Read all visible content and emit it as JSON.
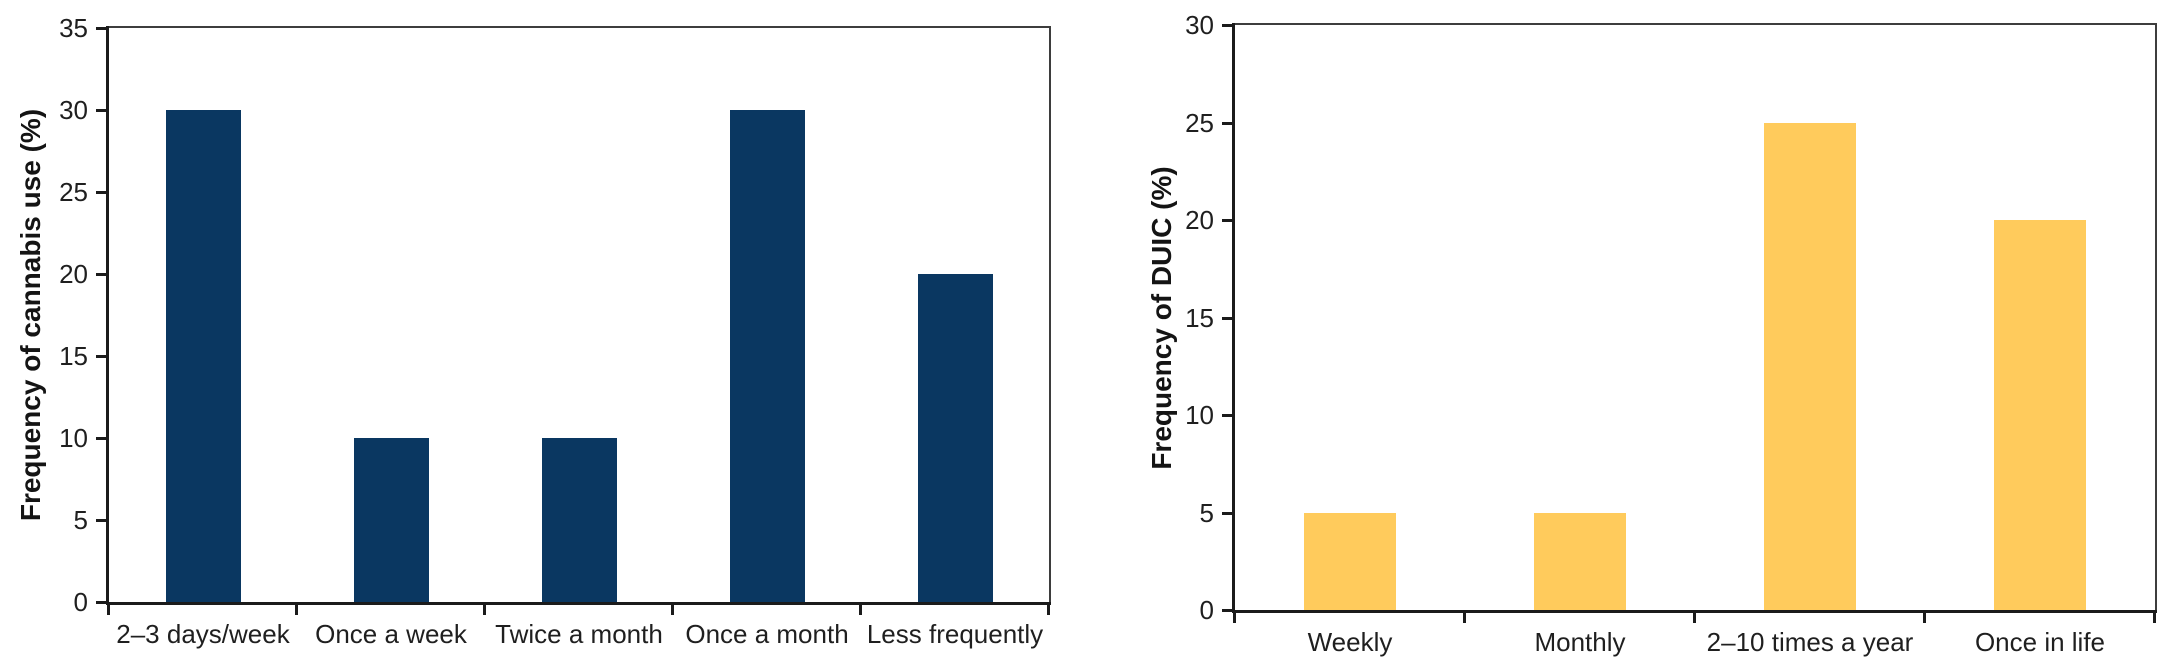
{
  "figure": {
    "background": "#ffffff",
    "description_left_panel": "Frequency of cannabis use (%)",
    "description_right_panel": "Frequency of DUIC (%)"
  },
  "colors": {
    "navy_bar": "#0a3761",
    "yellow_bar": "#ffcb5c",
    "axis": "#1b1b1b",
    "frame": "#3d3d3d",
    "text": "#1f1f1f"
  },
  "chart_data": [
    {
      "type": "bar",
      "title": "",
      "categories": [
        "2–3 days/week",
        "Once a week",
        "Twice a month",
        "Once a month",
        "Less frequently"
      ],
      "values": [
        30,
        10,
        10,
        30,
        20
      ],
      "xlabel": "",
      "ylabel": "Frequency of cannabis use (%)",
      "ylim": [
        0,
        35
      ],
      "yticks": [
        0,
        5,
        10,
        15,
        20,
        25,
        30,
        35
      ],
      "bar_color": "#0a3761",
      "grid": false,
      "legend": "none",
      "plot_frame": "boxed"
    },
    {
      "type": "bar",
      "title": "",
      "categories": [
        "Weekly",
        "Monthly",
        "2–10 times a year",
        "Once in life"
      ],
      "values": [
        5,
        5,
        25,
        20
      ],
      "xlabel": "",
      "ylabel": "Frequency of DUIC (%)",
      "ylim": [
        0,
        30
      ],
      "yticks": [
        0,
        5,
        10,
        15,
        20,
        25,
        30
      ],
      "bar_color": "#ffcb5c",
      "grid": false,
      "legend": "none",
      "plot_frame": "boxed"
    }
  ]
}
